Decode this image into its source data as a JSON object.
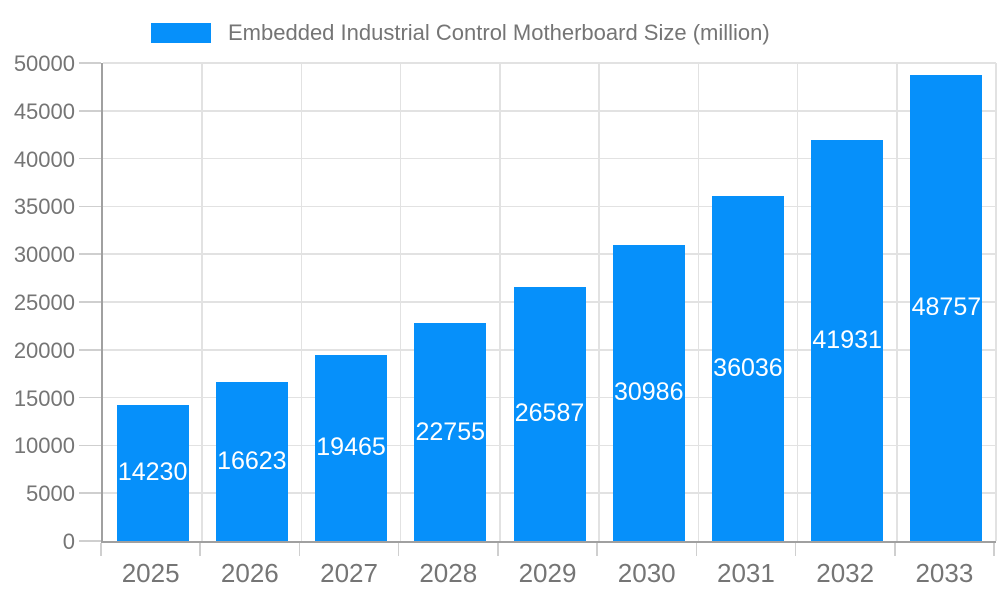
{
  "chart_data": {
    "type": "bar",
    "legend": "Embedded Industrial Control Motherboard Size (million)",
    "categories": [
      "2025",
      "2026",
      "2027",
      "2028",
      "2029",
      "2030",
      "2031",
      "2032",
      "2033"
    ],
    "values": [
      14230,
      16623,
      19465,
      22755,
      26587,
      30986,
      36036,
      41931,
      48757
    ],
    "ylim": [
      0,
      50000
    ],
    "ytick_step": 5000,
    "grid": true,
    "legend_position": "top",
    "colors": {
      "bar": "#0690fa",
      "value_label": "#ffffff",
      "axis_line": "#a0a0a0",
      "grid_line": "#e2e2e2",
      "tick_line": "#cfcfcf",
      "text": "#757575"
    }
  }
}
